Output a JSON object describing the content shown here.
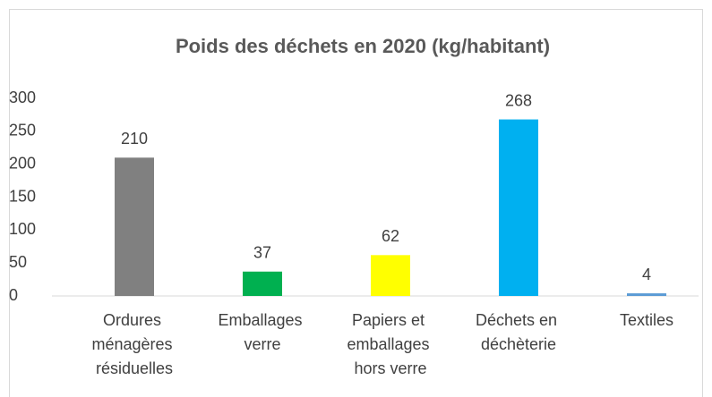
{
  "chart_data": {
    "type": "bar",
    "title": "Poids des déchets en 2020 (kg/habitant)",
    "categories": [
      "Ordures ménagères résiduelles",
      "Emballages verre",
      "Papiers et emballages hors verre",
      "Déchets en déchèterie",
      "Textiles"
    ],
    "values": [
      210,
      37,
      62,
      268,
      4
    ],
    "colors": [
      "#808080",
      "#00b050",
      "#ffff00",
      "#00b0f0",
      "#5b9bd5"
    ],
    "ylim": [
      0,
      300
    ],
    "yticks": [
      0,
      50,
      100,
      150,
      200,
      250,
      300
    ],
    "grid": false
  }
}
